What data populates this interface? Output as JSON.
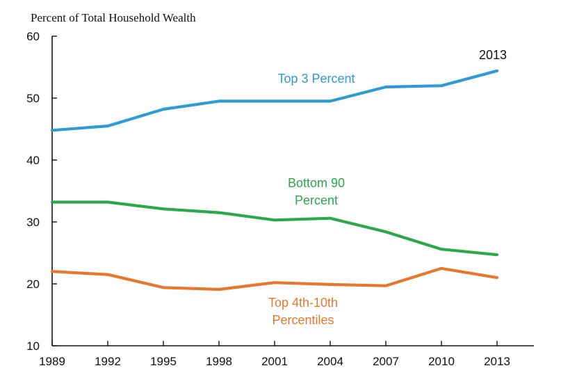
{
  "chart_data": {
    "type": "line",
    "ylabel": "Percent of Total Household Wealth",
    "x": [
      1989,
      1992,
      1995,
      1998,
      2001,
      2004,
      2007,
      2010,
      2013
    ],
    "xlim": [
      1989,
      2015
    ],
    "ylim": [
      10,
      60
    ],
    "yticks": [
      10,
      20,
      30,
      40,
      50,
      60
    ],
    "grid": false,
    "series": [
      {
        "name": "Top 3 Percent",
        "color": "#2e9bd6",
        "values": [
          44.8,
          45.5,
          48.2,
          49.5,
          49.5,
          49.5,
          51.8,
          52.0,
          54.4
        ]
      },
      {
        "name": "Bottom 90 Percent",
        "color": "#2aa84a",
        "values": [
          33.2,
          33.2,
          32.1,
          31.5,
          30.3,
          30.6,
          28.4,
          25.6,
          24.7
        ]
      },
      {
        "name": "Top 4th-10th Percentiles",
        "color": "#e8772e",
        "values": [
          22.0,
          21.5,
          19.4,
          19.1,
          20.2,
          19.9,
          19.7,
          22.5,
          21.0
        ]
      }
    ],
    "labels": {
      "top3": [
        "Top 3 Percent"
      ],
      "bottom90": [
        "Bottom 90",
        "Percent"
      ],
      "top4to10": [
        "Top 4th-10th",
        "Percentiles"
      ]
    },
    "annotation": "2013"
  }
}
